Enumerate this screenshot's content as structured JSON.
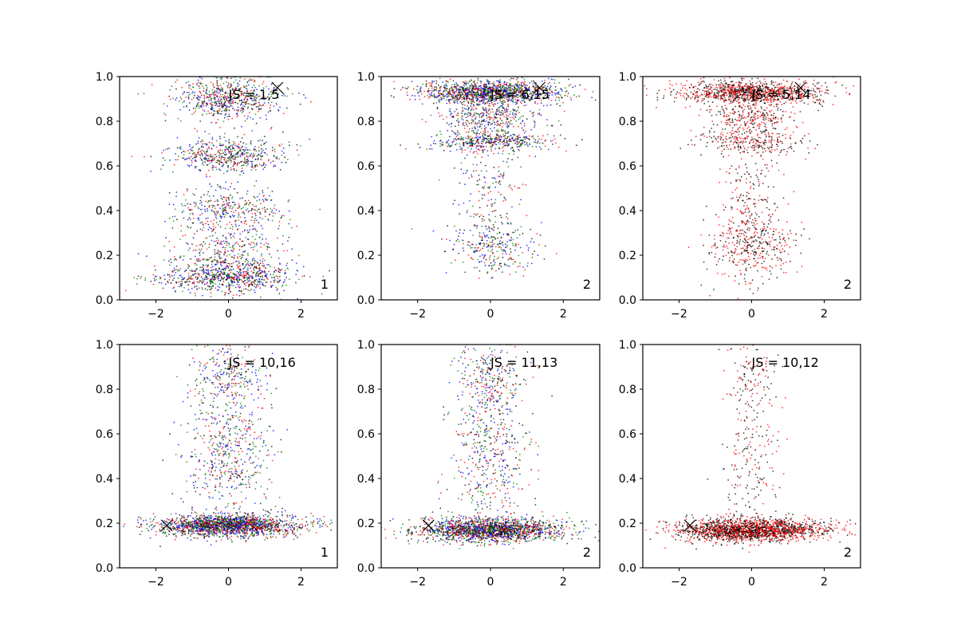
{
  "chart_data": [
    {
      "type": "scatter",
      "annotation": "JS = 1,5",
      "corner_label": "1",
      "xlim": [
        -3,
        3
      ],
      "ylim": [
        0,
        1
      ],
      "xticks": [
        -2,
        0,
        2
      ],
      "yticks": [
        "0.0",
        "0.2",
        "0.4",
        "0.6",
        "0.8",
        "1.0"
      ],
      "marker": {
        "x": 1.35,
        "y": 0.95
      },
      "series_colors": [
        "#0000ff",
        "#ff0000",
        "#008000",
        "#000000"
      ],
      "clusters": [
        {
          "cy": 0.1,
          "sy": 0.035,
          "sx": 0.9,
          "weight": 0.28
        },
        {
          "cy": 0.22,
          "sy": 0.06,
          "sx": 0.8,
          "weight": 0.14
        },
        {
          "cy": 0.4,
          "sy": 0.05,
          "sx": 0.75,
          "weight": 0.14
        },
        {
          "cy": 0.65,
          "sy": 0.04,
          "sx": 0.8,
          "weight": 0.2
        },
        {
          "cy": 0.9,
          "sy": 0.05,
          "sx": 0.75,
          "weight": 0.24
        }
      ]
    },
    {
      "type": "scatter",
      "annotation": "JS = 6,15",
      "corner_label": "2",
      "xlim": [
        -3,
        3
      ],
      "ylim": [
        0,
        1
      ],
      "xticks": [
        -2,
        0,
        2
      ],
      "yticks": [
        "0.0",
        "0.2",
        "0.4",
        "0.6",
        "0.8",
        "1.0"
      ],
      "marker": {
        "x": 1.35,
        "y": 0.95
      },
      "series_colors": [
        "#0000ff",
        "#ff0000",
        "#008000",
        "#000000"
      ],
      "clusters": [
        {
          "cy": 0.93,
          "sy": 0.025,
          "sx": 1.0,
          "weight": 0.5
        },
        {
          "cy": 0.82,
          "sy": 0.04,
          "sx": 0.7,
          "weight": 0.15
        },
        {
          "cy": 0.71,
          "sy": 0.025,
          "sx": 0.8,
          "weight": 0.18
        },
        {
          "cy": 0.25,
          "sy": 0.07,
          "sx": 0.6,
          "weight": 0.12
        },
        {
          "cy": 0.5,
          "sy": 0.1,
          "sx": 0.5,
          "weight": 0.05
        }
      ]
    },
    {
      "type": "scatter",
      "annotation": "JS = 5,14",
      "corner_label": "2",
      "xlim": [
        -3,
        3
      ],
      "ylim": [
        0,
        1
      ],
      "xticks": [
        -2,
        0,
        2
      ],
      "yticks": [
        "0.0",
        "0.2",
        "0.4",
        "0.6",
        "0.8",
        "1.0"
      ],
      "marker": {
        "x": 1.35,
        "y": 0.95
      },
      "series_colors": [
        "#ff0000",
        "#000000"
      ],
      "clusters": [
        {
          "cy": 0.93,
          "sy": 0.025,
          "sx": 1.0,
          "weight": 0.5
        },
        {
          "cy": 0.82,
          "sy": 0.04,
          "sx": 0.6,
          "weight": 0.12
        },
        {
          "cy": 0.71,
          "sy": 0.03,
          "sx": 0.7,
          "weight": 0.12
        },
        {
          "cy": 0.25,
          "sy": 0.08,
          "sx": 0.6,
          "weight": 0.19
        },
        {
          "cy": 0.5,
          "sy": 0.1,
          "sx": 0.4,
          "weight": 0.07
        }
      ]
    },
    {
      "type": "scatter",
      "annotation": "JS = 10,16",
      "corner_label": "1",
      "xlim": [
        -3,
        3
      ],
      "ylim": [
        0,
        1
      ],
      "xticks": [
        -2,
        0,
        2
      ],
      "yticks": [
        "0.0",
        "0.2",
        "0.4",
        "0.6",
        "0.8",
        "1.0"
      ],
      "marker": {
        "x": -1.7,
        "y": 0.19
      },
      "series_colors": [
        "#0000ff",
        "#ff0000",
        "#008000",
        "#000000"
      ],
      "clusters": [
        {
          "cy": 0.19,
          "sy": 0.025,
          "sx": 1.0,
          "weight": 0.7
        },
        {
          "cy": 0.5,
          "sy": 0.15,
          "sx": 0.6,
          "weight": 0.2
        },
        {
          "cy": 0.85,
          "sy": 0.08,
          "sx": 0.5,
          "weight": 0.1
        }
      ]
    },
    {
      "type": "scatter",
      "annotation": "JS = 11,13",
      "corner_label": "2",
      "xlim": [
        -3,
        3
      ],
      "ylim": [
        0,
        1
      ],
      "xticks": [
        -2,
        0,
        2
      ],
      "yticks": [
        "0.0",
        "0.2",
        "0.4",
        "0.6",
        "0.8",
        "1.0"
      ],
      "marker": {
        "x": -1.7,
        "y": 0.19
      },
      "series_colors": [
        "#0000ff",
        "#ff0000",
        "#008000",
        "#000000"
      ],
      "clusters": [
        {
          "cy": 0.17,
          "sy": 0.025,
          "sx": 1.0,
          "weight": 0.72
        },
        {
          "cy": 0.5,
          "sy": 0.17,
          "sx": 0.55,
          "weight": 0.18
        },
        {
          "cy": 0.85,
          "sy": 0.08,
          "sx": 0.45,
          "weight": 0.1
        }
      ]
    },
    {
      "type": "scatter",
      "annotation": "JS = 10,12",
      "corner_label": "2",
      "xlim": [
        -3,
        3
      ],
      "ylim": [
        0,
        1
      ],
      "xticks": [
        -2,
        0,
        2
      ],
      "yticks": [
        "0.0",
        "0.2",
        "0.4",
        "0.6",
        "0.8",
        "1.0"
      ],
      "marker": {
        "x": -1.7,
        "y": 0.19
      },
      "series_colors": [
        "#ff0000",
        "#000000"
      ],
      "clusters": [
        {
          "cy": 0.17,
          "sy": 0.025,
          "sx": 1.0,
          "weight": 0.86
        },
        {
          "cy": 0.5,
          "sy": 0.17,
          "sx": 0.4,
          "weight": 0.1
        },
        {
          "cy": 0.85,
          "sy": 0.08,
          "sx": 0.35,
          "weight": 0.04
        }
      ]
    }
  ]
}
